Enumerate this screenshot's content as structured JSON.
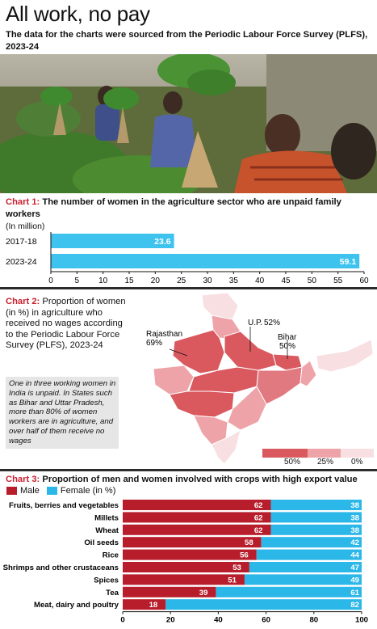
{
  "title": "All work, no pay",
  "subtitle": "The data for the charts were sourced from the Periodic Labour Force Survey (PLFS), 2023-24",
  "colors": {
    "accent_red": "#c8202f",
    "male": "#b81d2b",
    "female": "#2bb7e8",
    "bar": "#3ec3ef",
    "map_dark": "#d9595f",
    "map_mid": "#eea3a8",
    "map_light": "#f8dfe1"
  },
  "chart1": {
    "label": "Chart 1:",
    "title": "The number of women in the agriculture sector who are unpaid family workers",
    "unit": "(In million)"
  },
  "chart2": {
    "label": "Chart 2:",
    "text": "Proportion of women (in %) in agriculture who received no wages according to the Periodic Labour Force Survey (PLFS), 2023-24",
    "note": "One in three working women in India is unpaid. In States such as Bihar and Uttar Pradesh, more than 80% of women workers are in agriculture, and over half of them receive no wages",
    "annotations": [
      {
        "name": "Rajasthan",
        "value": "69%"
      },
      {
        "name": "U.P.",
        "value": "52%"
      },
      {
        "name": "Bihar",
        "value": "50%"
      }
    ],
    "legend": [
      "50%",
      "25%",
      "0%"
    ]
  },
  "chart3": {
    "label": "Chart 3:",
    "title": "Proportion of men and women involved with crops with high export value",
    "legend_male": "Male",
    "legend_female": "Female",
    "legend_unit": "(in %)"
  },
  "chart_data": [
    {
      "type": "bar",
      "orientation": "horizontal",
      "categories": [
        "2017-18",
        "2023-24"
      ],
      "values": [
        23.6,
        59.1
      ],
      "xlim": [
        0,
        60
      ],
      "xticks": [
        "0",
        "5",
        "10",
        "15",
        "20",
        "25",
        "30",
        "35",
        "40",
        "45",
        "50",
        "55",
        "60"
      ],
      "grid": false
    },
    {
      "type": "bar",
      "orientation": "horizontal",
      "stacked": true,
      "categories": [
        "Fruits, berries and vegetables",
        "Millets",
        "Wheat",
        "Oil seeds",
        "Rice",
        "Shrimps and other crustaceans",
        "Spices",
        "Tea",
        "Meat, dairy and poultry"
      ],
      "series": [
        {
          "name": "Male",
          "values": [
            62,
            62,
            62,
            58,
            56,
            53,
            51,
            39,
            18
          ]
        },
        {
          "name": "Female",
          "values": [
            38,
            38,
            38,
            42,
            44,
            47,
            49,
            61,
            82
          ]
        }
      ],
      "xlim": [
        0,
        100
      ],
      "xticks": [
        "0",
        "20",
        "40",
        "60",
        "80",
        "100"
      ],
      "legend": "top-left",
      "grid": false
    }
  ]
}
